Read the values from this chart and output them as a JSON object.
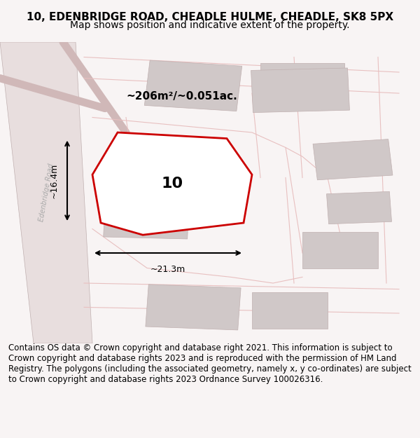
{
  "title_line1": "10, EDENBRIDGE ROAD, CHEADLE HULME, CHEADLE, SK8 5PX",
  "title_line2": "Map shows position and indicative extent of the property.",
  "footer_text": "Contains OS data © Crown copyright and database right 2021. This information is subject to Crown copyright and database rights 2023 and is reproduced with the permission of HM Land Registry. The polygons (including the associated geometry, namely x, y co-ordinates) are subject to Crown copyright and database rights 2023 Ordnance Survey 100026316.",
  "area_label": "~206m²/~0.051ac.",
  "width_label": "~21.3m",
  "height_label": "~16.4m",
  "plot_number": "10",
  "bg_color": "#f5f0f0",
  "map_bg": "#ffffff",
  "road_color": "#c8a0a0",
  "building_color": "#d8d0d0",
  "highlight_color": "#cc0000",
  "road_label": "Edenbridge Road",
  "title_fontsize": 11,
  "subtitle_fontsize": 10,
  "footer_fontsize": 8.5
}
